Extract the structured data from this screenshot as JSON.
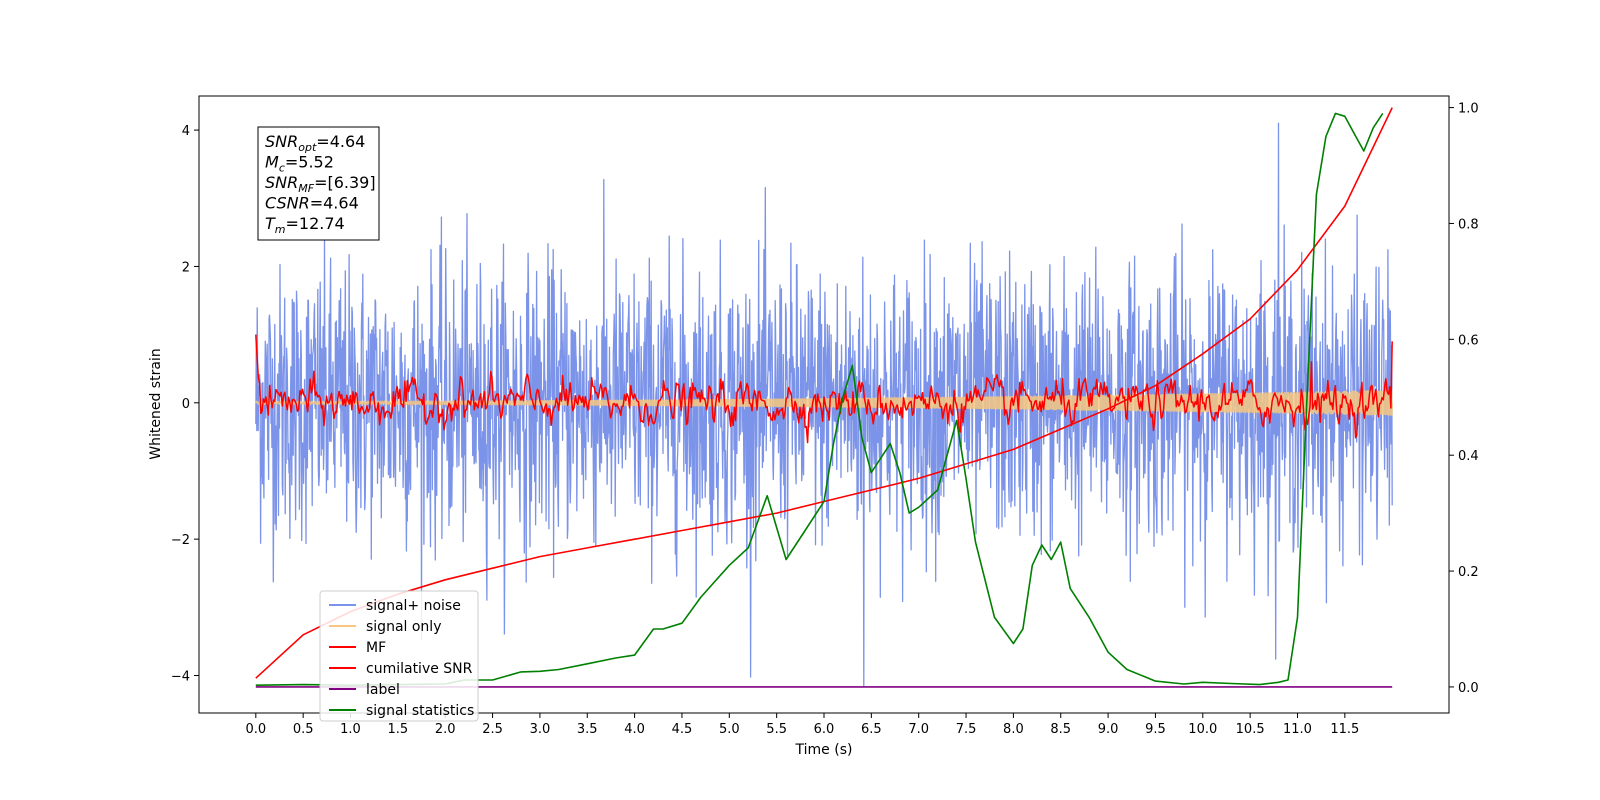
{
  "chart_data": {
    "type": "line",
    "xlabel": "Time (s)",
    "ylabel": "Whitened strain",
    "xlim": [
      -0.6,
      12.6
    ],
    "ylim": [
      -4.55,
      4.5
    ],
    "y2lim": [
      -0.045,
      1.02
    ],
    "x_ticks": [
      "0.0",
      "0.5",
      "1.0",
      "1.5",
      "2.0",
      "2.5",
      "3.0",
      "3.5",
      "4.0",
      "4.5",
      "5.0",
      "5.5",
      "6.0",
      "6.5",
      "7.0",
      "7.5",
      "8.0",
      "8.5",
      "9.0",
      "9.5",
      "10.0",
      "10.5",
      "11.0",
      "11.5"
    ],
    "y_ticks": [
      "4",
      "2",
      "0",
      "−2",
      "−4"
    ],
    "y2_ticks": [
      "1.0",
      "0.8",
      "0.6",
      "0.4",
      "0.2",
      "0.0"
    ],
    "grid": false,
    "legend_position": "lower-left",
    "annotation": {
      "lines": [
        {
          "var": "SNR",
          "sub": "opt",
          "value": "=4.64"
        },
        {
          "var": "M",
          "sub": "c",
          "value": "=5.52"
        },
        {
          "var": "SNR",
          "sub": "MF",
          "value": "=[6.39]"
        },
        {
          "var": "CSNR",
          "sub": "",
          "value": "=4.64"
        },
        {
          "var": "T",
          "sub": "m",
          "value": "=12.74"
        }
      ]
    },
    "series": [
      {
        "name": "signal+ noise",
        "color": "#7b93e8",
        "axis": "left",
        "style": "noise",
        "x_range": [
          0.0,
          12.0
        ],
        "std": 1.0,
        "min": -4.15,
        "max": 4.1
      },
      {
        "name": "signal only",
        "color": "#f7c77f",
        "axis": "left",
        "style": "chirp",
        "x_range": [
          0.0,
          12.0
        ],
        "amplitude_start": 0.02,
        "amplitude_end": 0.18
      },
      {
        "name": "MF",
        "color": "#ff0000",
        "axis": "left",
        "style": "mf",
        "x_range": [
          0.0,
          12.0
        ],
        "start_value": 1.0,
        "std": 0.13
      },
      {
        "name": "cumilative SNR",
        "color": "#ff0000",
        "axis": "right",
        "x": [
          0.0,
          0.5,
          1.0,
          1.5,
          2.0,
          2.5,
          3.0,
          3.5,
          4.0,
          4.5,
          5.0,
          5.5,
          6.0,
          6.5,
          7.0,
          7.5,
          8.0,
          8.5,
          9.0,
          9.5,
          10.0,
          10.5,
          11.0,
          11.5,
          12.0
        ],
        "values": [
          0.015,
          0.09,
          0.13,
          0.16,
          0.185,
          0.205,
          0.225,
          0.24,
          0.255,
          0.27,
          0.285,
          0.3,
          0.32,
          0.34,
          0.36,
          0.385,
          0.41,
          0.445,
          0.48,
          0.52,
          0.575,
          0.635,
          0.72,
          0.83,
          1.0
        ]
      },
      {
        "name": "label",
        "color": "#800080",
        "axis": "right",
        "x": [
          0.0,
          12.0
        ],
        "values": [
          0.0,
          0.0
        ]
      },
      {
        "name": "signal statistics",
        "color": "#008000",
        "axis": "right",
        "x": [
          0.0,
          0.5,
          1.0,
          1.5,
          2.0,
          2.2,
          2.5,
          2.8,
          3.0,
          3.2,
          3.5,
          3.8,
          4.0,
          4.2,
          4.3,
          4.5,
          4.7,
          5.0,
          5.2,
          5.4,
          5.6,
          5.8,
          6.0,
          6.1,
          6.2,
          6.3,
          6.4,
          6.5,
          6.7,
          6.8,
          6.9,
          7.0,
          7.2,
          7.4,
          7.5,
          7.6,
          7.8,
          8.0,
          8.1,
          8.2,
          8.3,
          8.4,
          8.5,
          8.6,
          8.8,
          9.0,
          9.2,
          9.5,
          9.8,
          10.0,
          10.3,
          10.6,
          10.8,
          10.9,
          11.0,
          11.1,
          11.2,
          11.3,
          11.4,
          11.5,
          11.6,
          11.7,
          11.8,
          11.9
        ],
        "values": [
          0.003,
          0.004,
          0.003,
          0.004,
          0.005,
          0.012,
          0.012,
          0.026,
          0.027,
          0.03,
          0.04,
          0.05,
          0.055,
          0.1,
          0.1,
          0.11,
          0.155,
          0.21,
          0.24,
          0.33,
          0.22,
          0.27,
          0.32,
          0.42,
          0.5,
          0.555,
          0.43,
          0.37,
          0.42,
          0.37,
          0.3,
          0.31,
          0.34,
          0.46,
          0.36,
          0.25,
          0.12,
          0.075,
          0.1,
          0.21,
          0.245,
          0.22,
          0.25,
          0.17,
          0.12,
          0.06,
          0.03,
          0.01,
          0.005,
          0.008,
          0.006,
          0.004,
          0.008,
          0.012,
          0.12,
          0.5,
          0.85,
          0.95,
          0.99,
          0.985,
          0.955,
          0.925,
          0.965,
          0.99
        ]
      }
    ]
  }
}
